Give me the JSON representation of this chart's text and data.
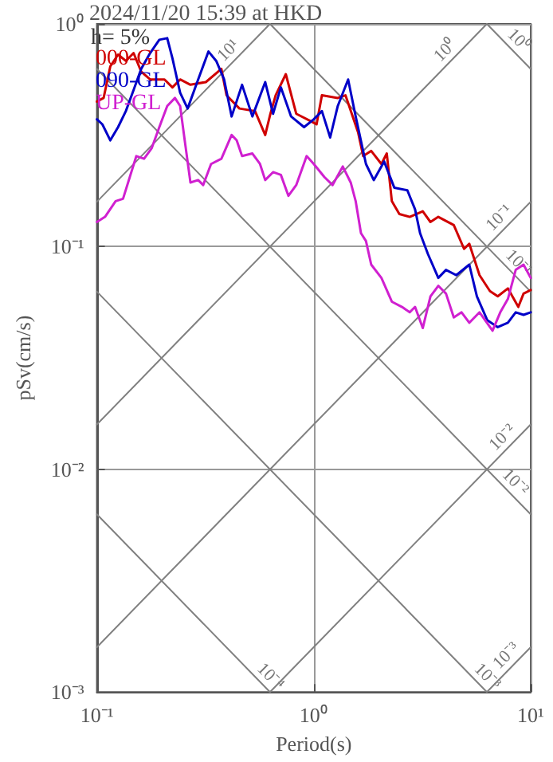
{
  "chart_data": {
    "type": "line",
    "title": "2024/11/20 15:39 at HKD",
    "xlabel": "Period(s)",
    "ylabel": "pSv(cm/s)",
    "log": "xy",
    "grid": true,
    "legend": "top left",
    "xlim": [
      0.1,
      10
    ],
    "ylim": [
      0.001,
      1
    ],
    "xticks": [
      {
        "value": 0.1,
        "label": "10⁻¹"
      },
      {
        "value": 1,
        "label": "10⁰"
      },
      {
        "value": 10,
        "label": "10¹"
      }
    ],
    "yticks": [
      {
        "value": 0.001,
        "label": "10⁻³"
      },
      {
        "value": 0.01,
        "label": "10⁻²"
      },
      {
        "value": 0.1,
        "label": "10⁻¹"
      },
      {
        "value": 1,
        "label": "10⁰"
      }
    ],
    "annotations": [
      "h= 5%",
      {
        "text": "10¹",
        "x": 0.44,
        "y": 0.7
      },
      {
        "text": "10⁰",
        "x": 4.4,
        "y": 0.7
      },
      {
        "text": "10⁰",
        "x": 8.07,
        "y": 0.778
      },
      {
        "text": "10⁻¹",
        "x": 7.8,
        "y": 0.124
      },
      {
        "text": "10⁻¹",
        "x": 8.07,
        "y": 0.0778
      },
      {
        "text": "10⁻²",
        "x": 8.07,
        "y": 0.0128
      },
      {
        "text": "10⁻²",
        "x": 7.8,
        "y": 0.00805
      },
      {
        "text": "10⁻³",
        "x": 5.8,
        "y": 0.00108
      },
      {
        "text": "10⁻³",
        "x": 8.4,
        "y": 0.00134
      },
      {
        "text": "10⁻⁴",
        "x": 0.58,
        "y": 0.00108
      }
    ],
    "series": [
      {
        "color": "#808080",
        "x": [
          0.1,
          0.628
        ],
        "values": [
          0.00628,
          0.001
        ]
      },
      {
        "color": "#808080",
        "x": [
          0.1,
          6.28
        ],
        "values": [
          0.0628,
          0.001
        ]
      },
      {
        "color": "#808080",
        "x": [
          0.1,
          10
        ],
        "values": [
          0.628,
          0.00628
        ]
      },
      {
        "color": "#808080",
        "x": [
          0.628,
          10
        ],
        "values": [
          1,
          0.0628
        ]
      },
      {
        "color": "#808080",
        "x": [
          6.28,
          10
        ],
        "values": [
          1,
          0.628
        ]
      },
      {
        "color": "#808080",
        "x": [
          6.28,
          10
        ],
        "values": [
          0.001,
          0.00159
        ]
      },
      {
        "color": "#808080",
        "x": [
          0.628,
          10
        ],
        "values": [
          0.001,
          0.0159
        ]
      },
      {
        "color": "#808080",
        "x": [
          0.1,
          10
        ],
        "values": [
          0.00159,
          0.159
        ]
      },
      {
        "color": "#808080",
        "x": [
          0.1,
          6.28
        ],
        "values": [
          0.0159,
          1
        ]
      },
      {
        "color": "#808080",
        "x": [
          0.1,
          0.628
        ],
        "values": [
          0.159,
          1
        ]
      },
      {
        "name": "000-GL",
        "color": "#d00000",
        "x": [
          0.1,
          0.1074,
          0.1153,
          0.1252,
          0.136,
          0.1476,
          0.16,
          0.176,
          0.205,
          0.223,
          0.242,
          0.27,
          0.318,
          0.375,
          0.396,
          0.454,
          0.536,
          0.597,
          0.631,
          0.667,
          0.743,
          0.83,
          0.978,
          1.03,
          1.09,
          1.29,
          1.4,
          1.6,
          1.69,
          1.84,
          2.05,
          2.17,
          2.29,
          2.48,
          2.77,
          3.18,
          3.45,
          3.75,
          4.42,
          4.93,
          5.21,
          5.81,
          6.49,
          7.05,
          7.85,
          8.77,
          9.27,
          10
        ],
        "values": [
          0.448,
          0.465,
          0.645,
          0.728,
          0.682,
          0.74,
          0.611,
          0.563,
          0.563,
          0.519,
          0.563,
          0.533,
          0.548,
          0.628,
          0.478,
          0.417,
          0.406,
          0.317,
          0.395,
          0.478,
          0.595,
          0.395,
          0.364,
          0.354,
          0.478,
          0.465,
          0.478,
          0.326,
          0.255,
          0.269,
          0.235,
          0.262,
          0.16,
          0.14,
          0.136,
          0.144,
          0.129,
          0.136,
          0.125,
          0.0977,
          0.103,
          0.0744,
          0.0631,
          0.0598,
          0.0649,
          0.0536,
          0.0615,
          0.0638
        ]
      },
      {
        "name": "090-GL",
        "color": "#0000c8",
        "x": [
          0.1,
          0.106,
          0.1153,
          0.1252,
          0.136,
          0.1476,
          0.16,
          0.176,
          0.194,
          0.211,
          0.223,
          0.242,
          0.262,
          0.293,
          0.327,
          0.355,
          0.386,
          0.418,
          0.467,
          0.521,
          0.597,
          0.649,
          0.705,
          0.786,
          0.902,
          1.0,
          1.09,
          1.19,
          1.29,
          1.44,
          1.56,
          1.74,
          1.89,
          2.11,
          2.35,
          2.7,
          2.93,
          3.09,
          3.36,
          3.75,
          4.07,
          4.54,
          5.21,
          5.65,
          6.31,
          7.05,
          7.85,
          8.53,
          9.27,
          10
        ],
        "values": [
          0.373,
          0.354,
          0.3,
          0.344,
          0.406,
          0.505,
          0.628,
          0.74,
          0.849,
          0.863,
          0.701,
          0.491,
          0.417,
          0.563,
          0.752,
          0.682,
          0.563,
          0.384,
          0.533,
          0.384,
          0.548,
          0.395,
          0.519,
          0.384,
          0.344,
          0.373,
          0.406,
          0.309,
          0.428,
          0.563,
          0.384,
          0.235,
          0.199,
          0.241,
          0.184,
          0.179,
          0.147,
          0.115,
          0.0926,
          0.0724,
          0.0786,
          0.0744,
          0.083,
          0.0598,
          0.0467,
          0.0435,
          0.0455,
          0.0507,
          0.0494,
          0.0507
        ]
      },
      {
        "name": "UP-GL",
        "color": "#d020d0",
        "x": [
          0.1,
          0.109,
          0.122,
          0.132,
          0.152,
          0.165,
          0.179,
          0.194,
          0.211,
          0.229,
          0.242,
          0.255,
          0.27,
          0.293,
          0.309,
          0.336,
          0.375,
          0.418,
          0.441,
          0.467,
          0.521,
          0.565,
          0.597,
          0.649,
          0.705,
          0.764,
          0.83,
          0.927,
          1.0,
          1.12,
          1.22,
          1.36,
          1.48,
          1.56,
          1.65,
          1.74,
          1.84,
          2.05,
          2.29,
          2.55,
          2.77,
          2.93,
          3.18,
          3.45,
          3.75,
          4.07,
          4.42,
          4.8,
          5.21,
          5.81,
          6.67,
          7.24,
          7.85,
          8.53,
          9.27,
          10
        ],
        "values": [
          0.129,
          0.136,
          0.16,
          0.164,
          0.255,
          0.248,
          0.277,
          0.344,
          0.428,
          0.465,
          0.428,
          0.292,
          0.194,
          0.199,
          0.189,
          0.235,
          0.248,
          0.317,
          0.3,
          0.255,
          0.262,
          0.235,
          0.199,
          0.216,
          0.21,
          0.169,
          0.189,
          0.255,
          0.235,
          0.205,
          0.189,
          0.229,
          0.194,
          0.16,
          0.115,
          0.106,
          0.083,
          0.0724,
          0.0566,
          0.0536,
          0.0507,
          0.0536,
          0.0431,
          0.0598,
          0.0667,
          0.0615,
          0.0481,
          0.0507,
          0.0455,
          0.0507,
          0.0419,
          0.0507,
          0.0582,
          0.0786,
          0.083,
          0.0724
        ]
      }
    ]
  }
}
